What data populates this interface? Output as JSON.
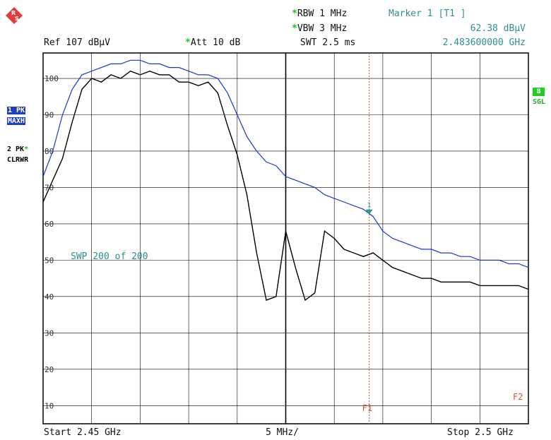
{
  "logo": {
    "text": "R&S"
  },
  "header": {
    "rbw": "RBW 1 MHz",
    "vbw": "VBW 3 MHz",
    "swt": "SWT 2.5 ms",
    "ref": "Ref  107 dBµV",
    "att": "Att  10 dB",
    "star": "*",
    "marker_title": "Marker 1 [T1 ]",
    "marker_level": "62.38 dBµV",
    "marker_freq": "2.483600000 GHz"
  },
  "left_panel": {
    "trace1_label": "1 PK",
    "trace1_mode": "MAXH",
    "trace2_label": "2 PK",
    "trace2_mode": "CLRWR"
  },
  "right_panel": {
    "badge": "B",
    "mode": "SGL"
  },
  "sweep_text": "SWP   200 of   200",
  "footer": {
    "start": "Start 2.45 GHz",
    "span": "5 MHz/",
    "stop": "Stop 2.5 GHz"
  },
  "lines": {
    "f1": "F1",
    "f2": "F2",
    "marker_num": "1"
  },
  "chart_data": {
    "type": "line",
    "yunit": "dBµV",
    "ylim": [
      5,
      107
    ],
    "xlim": [
      2.45,
      2.5
    ],
    "yticks": [
      10,
      20,
      30,
      40,
      50,
      60,
      70,
      80,
      90,
      100
    ],
    "colors": {
      "maxh": "#1a35d8",
      "clrwr": "#000000",
      "grid": "#000000",
      "f1": "#cc5533"
    },
    "marker": {
      "x": 2.4836,
      "y": 62.38
    },
    "series": [
      {
        "name": "1 PK MAXH",
        "x": [
          2.45,
          2.451,
          2.452,
          2.453,
          2.454,
          2.455,
          2.456,
          2.457,
          2.458,
          2.459,
          2.46,
          2.461,
          2.462,
          2.463,
          2.464,
          2.465,
          2.466,
          2.467,
          2.468,
          2.469,
          2.47,
          2.471,
          2.472,
          2.473,
          2.474,
          2.475,
          2.476,
          2.477,
          2.478,
          2.479,
          2.48,
          2.481,
          2.482,
          2.483,
          2.484,
          2.485,
          2.486,
          2.487,
          2.488,
          2.489,
          2.49,
          2.491,
          2.492,
          2.493,
          2.494,
          2.495,
          2.496,
          2.497,
          2.498,
          2.499,
          2.5
        ],
        "values": [
          73,
          80,
          90,
          97,
          101,
          102,
          103,
          104,
          104,
          105,
          105,
          104,
          104,
          103,
          103,
          102,
          101,
          101,
          100,
          96,
          90,
          84,
          80,
          77,
          76,
          73,
          72,
          71,
          70,
          68,
          67,
          66,
          65,
          64,
          62,
          58,
          56,
          55,
          54,
          53,
          53,
          52,
          52,
          51,
          51,
          50,
          50,
          50,
          49,
          49,
          48
        ]
      },
      {
        "name": "2 PK CLRWR",
        "x": [
          2.45,
          2.451,
          2.452,
          2.453,
          2.454,
          2.455,
          2.456,
          2.457,
          2.458,
          2.459,
          2.46,
          2.461,
          2.462,
          2.463,
          2.464,
          2.465,
          2.466,
          2.467,
          2.468,
          2.469,
          2.47,
          2.471,
          2.472,
          2.473,
          2.474,
          2.475,
          2.476,
          2.477,
          2.478,
          2.479,
          2.48,
          2.481,
          2.482,
          2.483,
          2.484,
          2.485,
          2.486,
          2.487,
          2.488,
          2.489,
          2.49,
          2.491,
          2.492,
          2.493,
          2.494,
          2.495,
          2.496,
          2.497,
          2.498,
          2.499,
          2.5
        ],
        "values": [
          66,
          72,
          78,
          88,
          97,
          100,
          99,
          101,
          100,
          102,
          101,
          102,
          101,
          101,
          99,
          99,
          98,
          99,
          96,
          87,
          79,
          68,
          52,
          39,
          40,
          58,
          48,
          39,
          41,
          58,
          56,
          53,
          52,
          51,
          52,
          50,
          48,
          47,
          46,
          45,
          45,
          44,
          44,
          44,
          44,
          43,
          43,
          43,
          43,
          43,
          42
        ]
      }
    ]
  }
}
